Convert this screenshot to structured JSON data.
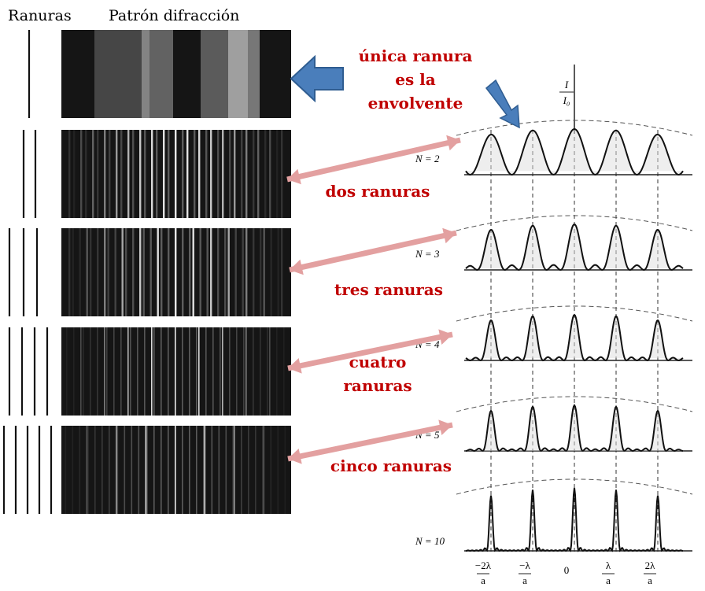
{
  "headers": {
    "slits": "Ranuras",
    "pattern": "Patrón difracción"
  },
  "annotations": {
    "single": [
      "única ranura",
      "es la",
      "envolvente"
    ],
    "two": [
      "dos ranuras"
    ],
    "three": [
      "tres ranuras"
    ],
    "four": [
      "cuatro",
      "ranuras"
    ],
    "five": [
      "cinco ranuras"
    ]
  },
  "graph": {
    "y_label": {
      "num": "I",
      "den": "I₀"
    },
    "rows": [
      "N = 2",
      "N = 3",
      "N = 4",
      "N = 5",
      "N = 10"
    ],
    "x_labels": [
      {
        "num": "−2λ",
        "den": "a"
      },
      {
        "num": "−λ",
        "den": "a"
      },
      {
        "num": "0",
        "den": ""
      },
      {
        "num": "λ",
        "den": "a"
      },
      {
        "num": "2λ",
        "den": "a"
      }
    ]
  }
}
